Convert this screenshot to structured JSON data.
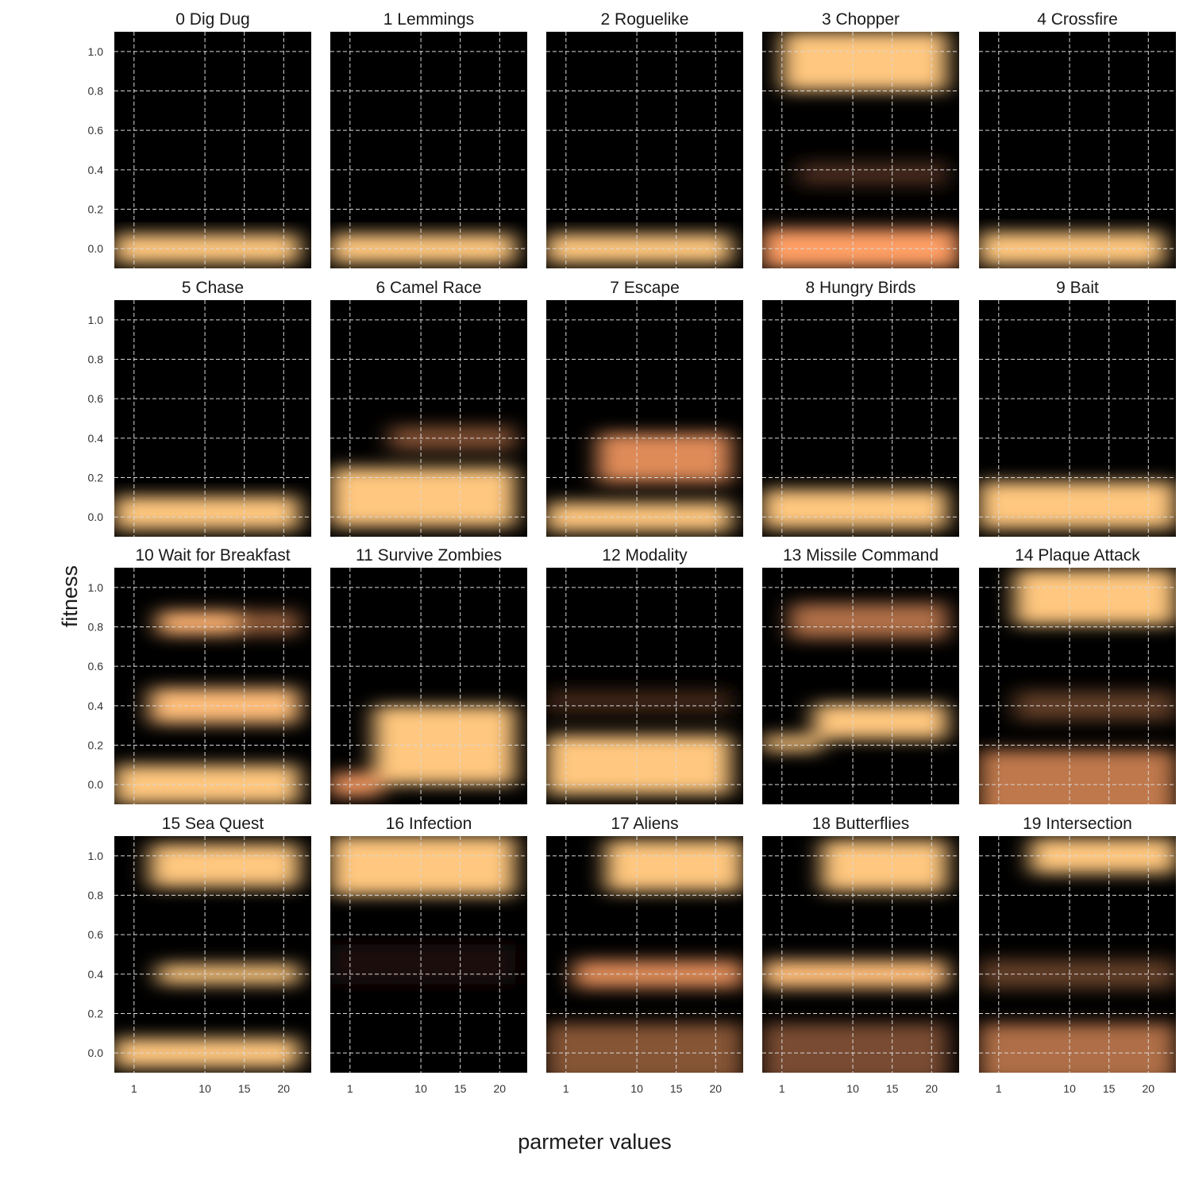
{
  "chart_data": {
    "type": "heatmap",
    "xlabel": "parmeter values",
    "ylabel": "fitness",
    "x_ticks": [
      1,
      10,
      15,
      20
    ],
    "y_ticks": [
      0.0,
      0.2,
      0.4,
      0.6,
      0.8,
      1.0
    ],
    "x_tick_labels": [
      "1",
      "10",
      "15",
      "20"
    ],
    "y_tick_labels": [
      "0.0",
      "0.2",
      "0.4",
      "0.6",
      "0.8",
      "1.0"
    ],
    "xlim": [
      -1.5,
      23.5
    ],
    "ylim": [
      -0.1,
      1.1
    ],
    "grid": true,
    "colormap": "copper",
    "colors": {
      "low": "#000000",
      "high": "#ffc77f",
      "grid": "#d8d8d8"
    },
    "panels": [
      {
        "title": "0 Dig Dug",
        "blobs": [
          {
            "x0": -1.5,
            "x1": 22,
            "y": 0.0,
            "h": 0.15,
            "i": 1.0
          }
        ]
      },
      {
        "title": "1 Lemmings",
        "blobs": [
          {
            "x0": -1.5,
            "x1": 22,
            "y": 0.0,
            "h": 0.15,
            "i": 1.0
          }
        ]
      },
      {
        "title": "2 Roguelike",
        "blobs": [
          {
            "x0": -1.5,
            "x1": 22,
            "y": 0.0,
            "h": 0.15,
            "i": 1.0
          }
        ]
      },
      {
        "title": "3 Chopper",
        "blobs": [
          {
            "x0": 1,
            "x1": 22,
            "y": 0.95,
            "h": 0.3,
            "i": 1.0
          },
          {
            "x0": -1.5,
            "x1": 23.5,
            "y": 0.0,
            "h": 0.2,
            "i": 0.8
          },
          {
            "x0": 3,
            "x1": 22,
            "y": 0.38,
            "h": 0.12,
            "i": 0.22
          }
        ]
      },
      {
        "title": "4 Crossfire",
        "blobs": [
          {
            "x0": -1.5,
            "x1": 22,
            "y": 0.0,
            "h": 0.17,
            "i": 1.0
          }
        ]
      },
      {
        "title": "5 Chase",
        "blobs": [
          {
            "x0": -1.5,
            "x1": 22,
            "y": 0.02,
            "h": 0.17,
            "i": 1.0
          }
        ]
      },
      {
        "title": "6 Camel Race",
        "blobs": [
          {
            "x0": -1.5,
            "x1": 22,
            "y": 0.1,
            "h": 0.3,
            "i": 1.0
          },
          {
            "x0": 6,
            "x1": 22,
            "y": 0.4,
            "h": 0.12,
            "i": 0.4
          }
        ]
      },
      {
        "title": "7 Escape",
        "blobs": [
          {
            "x0": -1.5,
            "x1": 22,
            "y": 0.0,
            "h": 0.15,
            "i": 1.0
          },
          {
            "x0": 5,
            "x1": 22,
            "y": 0.3,
            "h": 0.25,
            "i": 0.7
          }
        ]
      },
      {
        "title": "8 Hungry Birds",
        "blobs": [
          {
            "x0": -1.5,
            "x1": 22,
            "y": 0.04,
            "h": 0.2,
            "i": 1.0
          }
        ]
      },
      {
        "title": "9 Bait",
        "blobs": [
          {
            "x0": -1.5,
            "x1": 23.5,
            "y": 0.06,
            "h": 0.24,
            "i": 1.0
          }
        ]
      },
      {
        "title": "10 Wait for Breakfast",
        "blobs": [
          {
            "x0": -1.5,
            "x1": 22,
            "y": 0.0,
            "h": 0.2,
            "i": 1.0
          },
          {
            "x0": 3,
            "x1": 22,
            "y": 0.4,
            "h": 0.18,
            "i": 0.95
          },
          {
            "x0": 4,
            "x1": 14,
            "y": 0.82,
            "h": 0.12,
            "i": 0.9
          },
          {
            "x0": 14,
            "x1": 22,
            "y": 0.82,
            "h": 0.12,
            "i": 0.45
          }
        ]
      },
      {
        "title": "11 Survive Zombies",
        "blobs": [
          {
            "x0": 4,
            "x1": 22,
            "y": 0.2,
            "h": 0.4,
            "i": 1.0
          },
          {
            "x0": -1.5,
            "x1": 5,
            "y": 0.0,
            "h": 0.12,
            "i": 0.75
          }
        ]
      },
      {
        "title": "12 Modality",
        "blobs": [
          {
            "x0": -1.5,
            "x1": 22,
            "y": 0.1,
            "h": 0.3,
            "i": 1.0
          },
          {
            "x0": -1.5,
            "x1": 22,
            "y": 0.42,
            "h": 0.12,
            "i": 0.2
          }
        ]
      },
      {
        "title": "13 Missile Command",
        "blobs": [
          {
            "x0": 5,
            "x1": 22,
            "y": 0.32,
            "h": 0.18,
            "i": 1.0
          },
          {
            "x0": -1.5,
            "x1": 6,
            "y": 0.21,
            "h": 0.08,
            "i": 1.0
          },
          {
            "x0": 2,
            "x1": 22,
            "y": 0.83,
            "h": 0.18,
            "i": 0.55
          }
        ]
      },
      {
        "title": "14 Plaque Attack",
        "blobs": [
          {
            "x0": 3,
            "x1": 23.5,
            "y": 0.95,
            "h": 0.28,
            "i": 1.0
          },
          {
            "x0": -1.5,
            "x1": 23.5,
            "y": 0.0,
            "h": 0.35,
            "i": 0.6
          },
          {
            "x0": 3,
            "x1": 23.5,
            "y": 0.4,
            "h": 0.15,
            "i": 0.3
          }
        ]
      },
      {
        "title": "15 Sea Quest",
        "blobs": [
          {
            "x0": -1.5,
            "x1": 22,
            "y": 0.0,
            "h": 0.15,
            "i": 1.0
          },
          {
            "x0": 4,
            "x1": 22,
            "y": 0.4,
            "h": 0.1,
            "i": 1.0
          },
          {
            "x0": 3,
            "x1": 22,
            "y": 0.95,
            "h": 0.22,
            "i": 1.0
          }
        ]
      },
      {
        "title": "16 Infection",
        "blobs": [
          {
            "x0": -1.5,
            "x1": 22,
            "y": 0.95,
            "h": 0.3,
            "i": 1.0
          },
          {
            "x0": -1.5,
            "x1": 22,
            "y": 0.45,
            "h": 0.2,
            "i": 0.08
          }
        ]
      },
      {
        "title": "17 Aliens",
        "blobs": [
          {
            "x0": 6,
            "x1": 23.5,
            "y": 0.95,
            "h": 0.26,
            "i": 1.0
          },
          {
            "x0": 2,
            "x1": 23.5,
            "y": 0.4,
            "h": 0.14,
            "i": 0.7
          },
          {
            "x0": -1.5,
            "x1": 23.5,
            "y": 0.0,
            "h": 0.3,
            "i": 0.42
          }
        ]
      },
      {
        "title": "18 Butterflies",
        "blobs": [
          {
            "x0": 6,
            "x1": 22,
            "y": 0.95,
            "h": 0.26,
            "i": 1.0
          },
          {
            "x0": -1.5,
            "x1": 22,
            "y": 0.4,
            "h": 0.14,
            "i": 0.95
          },
          {
            "x0": -1.5,
            "x1": 22,
            "y": 0.0,
            "h": 0.3,
            "i": 0.38
          }
        ]
      },
      {
        "title": "19 Intersection",
        "blobs": [
          {
            "x0": 5,
            "x1": 23.5,
            "y": 1.0,
            "h": 0.18,
            "i": 1.0
          },
          {
            "x0": -1.5,
            "x1": 23.5,
            "y": 0.0,
            "h": 0.3,
            "i": 0.55
          },
          {
            "x0": -1.5,
            "x1": 23.5,
            "y": 0.4,
            "h": 0.15,
            "i": 0.3
          }
        ]
      }
    ]
  }
}
